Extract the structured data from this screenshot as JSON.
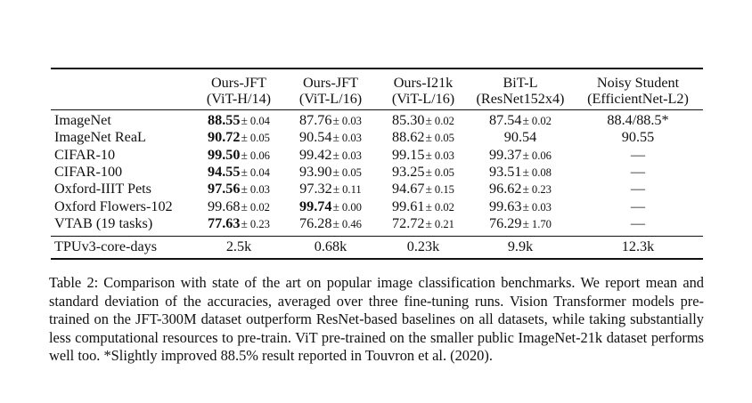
{
  "columns": [
    {
      "name": "Ours-JFT",
      "model": "(ViT-H/14)"
    },
    {
      "name": "Ours-JFT",
      "model": "(ViT-L/16)"
    },
    {
      "name": "Ours-I21k",
      "model": "(ViT-L/16)"
    },
    {
      "name": "BiT-L",
      "model": "(ResNet152x4)"
    },
    {
      "name": "Noisy Student",
      "model": "(EfficientNet-L2)"
    }
  ],
  "rows": [
    {
      "label": "ImageNet",
      "cells": [
        {
          "value": "88.55",
          "pm": "±",
          "sd": "0.04",
          "bold": true
        },
        {
          "value": "87.76",
          "pm": "±",
          "sd": "0.03",
          "bold": false
        },
        {
          "value": "85.30",
          "pm": "±",
          "sd": "0.02",
          "bold": false
        },
        {
          "value": "87.54",
          "pm": "±",
          "sd": "0.02",
          "bold": false
        },
        {
          "value": "88.4/88.5*",
          "pm": "",
          "sd": "",
          "bold": false
        }
      ]
    },
    {
      "label": "ImageNet ReaL",
      "cells": [
        {
          "value": "90.72",
          "pm": "±",
          "sd": "0.05",
          "bold": true
        },
        {
          "value": "90.54",
          "pm": "±",
          "sd": "0.03",
          "bold": false
        },
        {
          "value": "88.62",
          "pm": "±",
          "sd": "0.05",
          "bold": false
        },
        {
          "value": "90.54",
          "pm": "",
          "sd": "",
          "bold": false
        },
        {
          "value": "90.55",
          "pm": "",
          "sd": "",
          "bold": false
        }
      ]
    },
    {
      "label": "CIFAR-10",
      "cells": [
        {
          "value": "99.50",
          "pm": "±",
          "sd": "0.06",
          "bold": true
        },
        {
          "value": "99.42",
          "pm": "±",
          "sd": "0.03",
          "bold": false
        },
        {
          "value": "99.15",
          "pm": "±",
          "sd": "0.03",
          "bold": false
        },
        {
          "value": "99.37",
          "pm": "±",
          "sd": "0.06",
          "bold": false
        },
        {
          "value": "—",
          "pm": "",
          "sd": "",
          "bold": false
        }
      ]
    },
    {
      "label": "CIFAR-100",
      "cells": [
        {
          "value": "94.55",
          "pm": "±",
          "sd": "0.04",
          "bold": true
        },
        {
          "value": "93.90",
          "pm": "±",
          "sd": "0.05",
          "bold": false
        },
        {
          "value": "93.25",
          "pm": "±",
          "sd": "0.05",
          "bold": false
        },
        {
          "value": "93.51",
          "pm": "±",
          "sd": "0.08",
          "bold": false
        },
        {
          "value": "—",
          "pm": "",
          "sd": "",
          "bold": false
        }
      ]
    },
    {
      "label": "Oxford-IIIT Pets",
      "cells": [
        {
          "value": "97.56",
          "pm": "±",
          "sd": "0.03",
          "bold": true
        },
        {
          "value": "97.32",
          "pm": "±",
          "sd": "0.11",
          "bold": false
        },
        {
          "value": "94.67",
          "pm": "±",
          "sd": "0.15",
          "bold": false
        },
        {
          "value": "96.62",
          "pm": "±",
          "sd": "0.23",
          "bold": false
        },
        {
          "value": "—",
          "pm": "",
          "sd": "",
          "bold": false
        }
      ]
    },
    {
      "label": "Oxford Flowers-102",
      "cells": [
        {
          "value": "99.68",
          "pm": "±",
          "sd": "0.02",
          "bold": false
        },
        {
          "value": "99.74",
          "pm": "±",
          "sd": "0.00",
          "bold": true
        },
        {
          "value": "99.61",
          "pm": "±",
          "sd": "0.02",
          "bold": false
        },
        {
          "value": "99.63",
          "pm": "±",
          "sd": "0.03",
          "bold": false
        },
        {
          "value": "—",
          "pm": "",
          "sd": "",
          "bold": false
        }
      ]
    },
    {
      "label": "VTAB (19 tasks)",
      "cells": [
        {
          "value": "77.63",
          "pm": "±",
          "sd": "0.23",
          "bold": true
        },
        {
          "value": "76.28",
          "pm": "±",
          "sd": "0.46",
          "bold": false
        },
        {
          "value": "72.72",
          "pm": "±",
          "sd": "0.21",
          "bold": false
        },
        {
          "value": "76.29",
          "pm": "±",
          "sd": "1.70",
          "bold": false
        },
        {
          "value": "—",
          "pm": "",
          "sd": "",
          "bold": false
        }
      ]
    }
  ],
  "compute_row": {
    "label": "TPUv3-core-days",
    "values": [
      "2.5k",
      "0.68k",
      "0.23k",
      "9.9k",
      "12.3k"
    ]
  },
  "caption": {
    "label": "Table 2:",
    "text": "Comparison with state of the art on popular image classification benchmarks. We report mean and standard deviation of the accuracies, averaged over three fine-tuning runs. Vision Transformer models pre-trained on the JFT-300M dataset outperform ResNet-based baselines on all datasets, while taking substantially less computational resources to pre-train. ViT pre-trained on the smaller public ImageNet-21k dataset performs well too. *Slightly improved 88.5% result reported in Touvron et al. (2020)."
  }
}
